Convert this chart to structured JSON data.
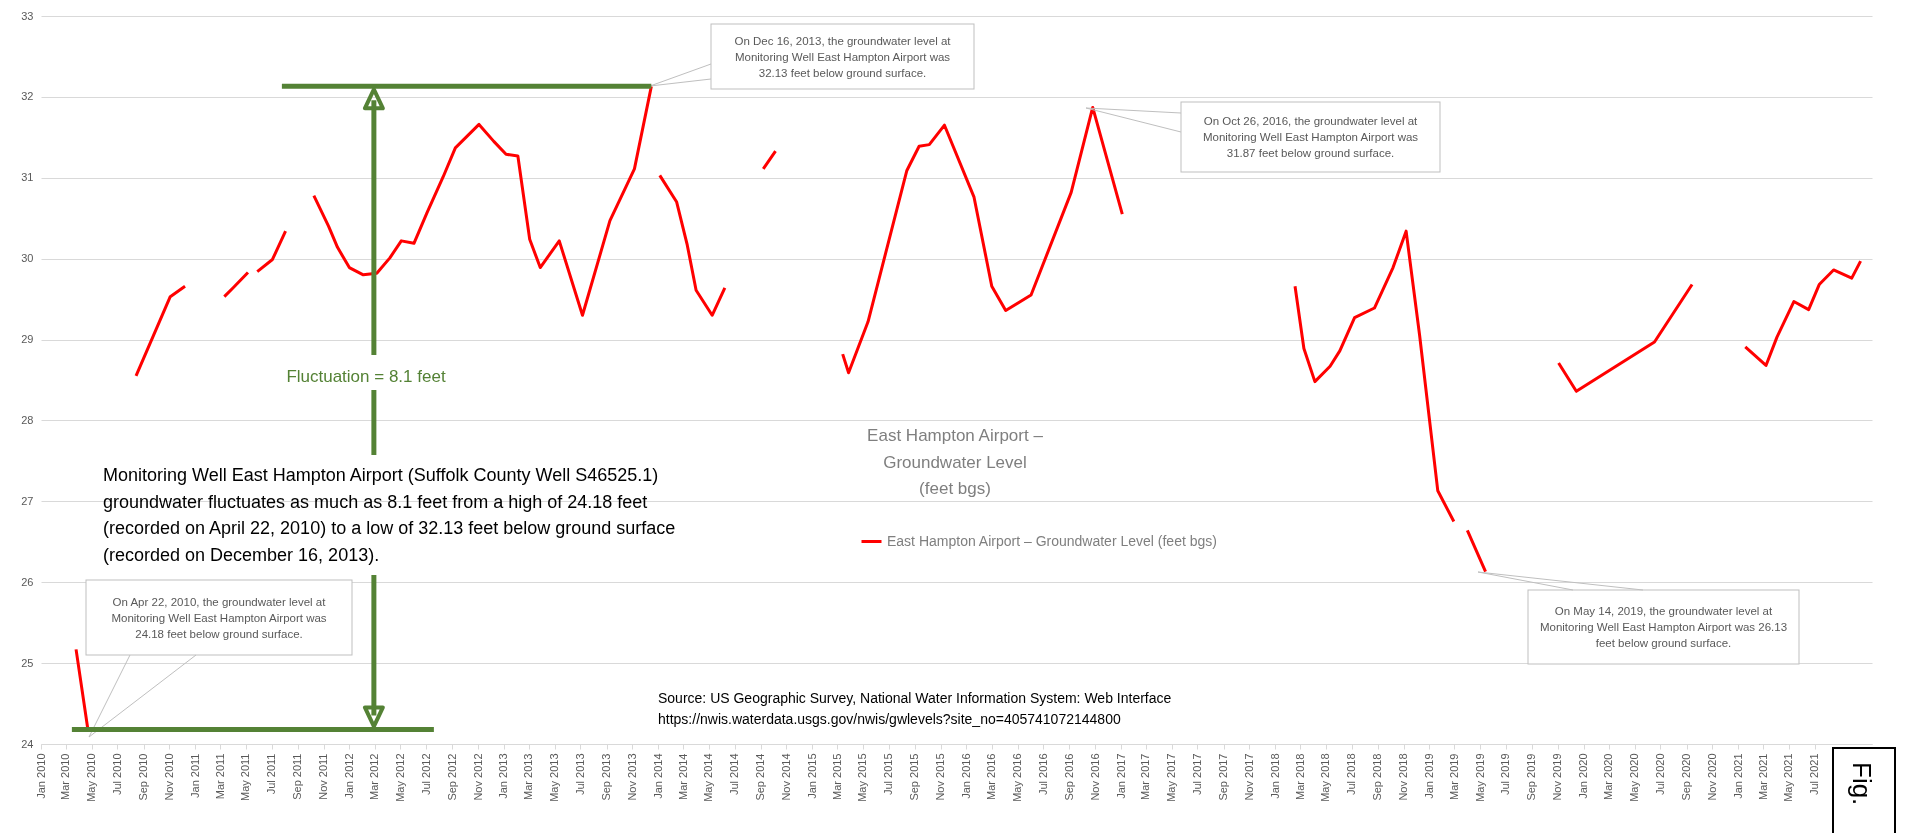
{
  "chart_data": {
    "type": "line",
    "title": "East Hampton Airport – Groundwater Level (feet bgs)",
    "series": [
      {
        "name": "East Hampton Airport – Groundwater Level (feet bgs)",
        "color": "#ff0000",
        "x": [
          "2010-03-25",
          "2010-04-22",
          "2010-06-15",
          "2010-08-14",
          "2010-11-03",
          "2010-12-08",
          "2011-02-01",
          "2011-03-11",
          "2011-04-01",
          "2011-05-06",
          "2011-05-17",
          "2011-05-28",
          "2011-07-03",
          "2011-08-03",
          "2011-09-10",
          "2011-10-09",
          "2011-11-13",
          "2011-12-04",
          "2012-01-01",
          "2012-02-03",
          "2012-03-06",
          "2012-04-06",
          "2012-05-03",
          "2012-06-02",
          "2012-07-03",
          "2012-08-10",
          "2012-09-08",
          "2012-11-03",
          "2012-12-08",
          "2013-01-06",
          "2013-02-03",
          "2013-03-03",
          "2013-03-28",
          "2013-05-12",
          "2013-07-06",
          "2013-09-09",
          "2013-11-06",
          "2013-12-16",
          "2013-12-25",
          "2014-01-05",
          "2014-02-14",
          "2014-03-11",
          "2014-04-01",
          "2014-05-09",
          "2014-06-08",
          "2014-08-01",
          "2014-09-07",
          "2014-10-06",
          "2015-01-01",
          "2015-03-14",
          "2015-03-28",
          "2015-05-13",
          "2015-08-13",
          "2015-09-11",
          "2015-10-05",
          "2015-11-10",
          "2016-01-19",
          "2016-03-01",
          "2016-04-03",
          "2016-06-02",
          "2016-09-05",
          "2016-10-26",
          "2017-01-04",
          "2017-08-01",
          "2018-02-17",
          "2018-03-10",
          "2018-04-05",
          "2018-05-11",
          "2018-06-03",
          "2018-07-08",
          "2018-08-24",
          "2018-10-07",
          "2018-11-07",
          "2018-12-09",
          "2019-01-21",
          "2019-02-28",
          "2019-03-15",
          "2019-04-01",
          "2019-05-14",
          "2019-08-01",
          "2019-11-03",
          "2019-12-15",
          "2020-06-17",
          "2020-09-14",
          "2020-12-01",
          "2021-01-18",
          "2021-03-08",
          "2021-04-03",
          "2021-05-13",
          "2021-06-17",
          "2021-07-12",
          "2021-08-15",
          "2021-09-27",
          "2021-10-18"
        ],
        "values": [
          25.17,
          24.18,
          null,
          28.55,
          29.53,
          29.66,
          null,
          29.53,
          29.64,
          29.83,
          null,
          29.84,
          29.99,
          30.34,
          null,
          30.78,
          30.4,
          30.14,
          29.89,
          29.8,
          29.82,
          30.01,
          30.22,
          30.19,
          30.57,
          31.01,
          31.37,
          31.66,
          31.45,
          31.29,
          31.27,
          30.24,
          29.89,
          30.22,
          29.3,
          30.47,
          31.11,
          32.13,
          null,
          31.03,
          30.7,
          30.17,
          29.61,
          29.3,
          29.64,
          null,
          31.11,
          31.33,
          null,
          28.82,
          28.59,
          29.22,
          31.09,
          31.39,
          31.41,
          31.65,
          30.76,
          29.66,
          29.36,
          29.55,
          30.82,
          31.87,
          30.55,
          null,
          29.66,
          28.89,
          28.48,
          28.67,
          28.86,
          29.27,
          29.39,
          29.89,
          30.34,
          29.05,
          27.13,
          26.75,
          null,
          26.64,
          26.13,
          null,
          28.71,
          28.36,
          28.97,
          29.68,
          null,
          28.91,
          28.68,
          29.03,
          29.47,
          29.37,
          29.68,
          29.86,
          29.76,
          29.97
        ]
      }
    ],
    "xlim": [
      "2010-01-01",
      "2021-11-14"
    ],
    "xticks": [
      {
        "value": "2010-01",
        "label": "Jan 2010"
      },
      {
        "value": "2010-03",
        "label": "Mar 2010"
      },
      {
        "value": "2010-05",
        "label": "May 2010"
      },
      {
        "value": "2010-07",
        "label": "Jul 2010"
      },
      {
        "value": "2010-09",
        "label": "Sep 2010"
      },
      {
        "value": "2010-11",
        "label": "Nov 2010"
      },
      {
        "value": "2011-01",
        "label": "Jan 2011"
      },
      {
        "value": "2011-03",
        "label": "Mar 2011"
      },
      {
        "value": "2011-05",
        "label": "May 2011"
      },
      {
        "value": "2011-07",
        "label": "Jul 2011"
      },
      {
        "value": "2011-09",
        "label": "Sep 2011"
      },
      {
        "value": "2011-11",
        "label": "Nov 2011"
      },
      {
        "value": "2012-01",
        "label": "Jan 2012"
      },
      {
        "value": "2012-03",
        "label": "Mar 2012"
      },
      {
        "value": "2012-05",
        "label": "May 2012"
      },
      {
        "value": "2012-07",
        "label": "Jul 2012"
      },
      {
        "value": "2012-09",
        "label": "Sep 2012"
      },
      {
        "value": "2012-11",
        "label": "Nov 2012"
      },
      {
        "value": "2013-01",
        "label": "Jan 2013"
      },
      {
        "value": "2013-03",
        "label": "Mar 2013"
      },
      {
        "value": "2013-05",
        "label": "May 2013"
      },
      {
        "value": "2013-07",
        "label": "Jul 2013"
      },
      {
        "value": "2013-09",
        "label": "Sep 2013"
      },
      {
        "value": "2013-11",
        "label": "Nov 2013"
      },
      {
        "value": "2014-01",
        "label": "Jan 2014"
      },
      {
        "value": "2014-03",
        "label": "Mar 2014"
      },
      {
        "value": "2014-05",
        "label": "May 2014"
      },
      {
        "value": "2014-07",
        "label": "Jul 2014"
      },
      {
        "value": "2014-09",
        "label": "Sep 2014"
      },
      {
        "value": "2014-11",
        "label": "Nov 2014"
      },
      {
        "value": "2015-01",
        "label": "Jan 2015"
      },
      {
        "value": "2015-03",
        "label": "Mar 2015"
      },
      {
        "value": "2015-05",
        "label": "May 2015"
      },
      {
        "value": "2015-07",
        "label": "Jul 2015"
      },
      {
        "value": "2015-09",
        "label": "Sep 2015"
      },
      {
        "value": "2015-11",
        "label": "Nov 2015"
      },
      {
        "value": "2016-01",
        "label": "Jan 2016"
      },
      {
        "value": "2016-03",
        "label": "Mar 2016"
      },
      {
        "value": "2016-05",
        "label": "May 2016"
      },
      {
        "value": "2016-07",
        "label": "Jul 2016"
      },
      {
        "value": "2016-09",
        "label": "Sep 2016"
      },
      {
        "value": "2016-11",
        "label": "Nov 2016"
      },
      {
        "value": "2017-01",
        "label": "Jan 2017"
      },
      {
        "value": "2017-03",
        "label": "Mar 2017"
      },
      {
        "value": "2017-05",
        "label": "May 2017"
      },
      {
        "value": "2017-07",
        "label": "Jul 2017"
      },
      {
        "value": "2017-09",
        "label": "Sep 2017"
      },
      {
        "value": "2017-11",
        "label": "Nov 2017"
      },
      {
        "value": "2018-01",
        "label": "Jan 2018"
      },
      {
        "value": "2018-03",
        "label": "Mar 2018"
      },
      {
        "value": "2018-05",
        "label": "May 2018"
      },
      {
        "value": "2018-07",
        "label": "Jul 2018"
      },
      {
        "value": "2018-09",
        "label": "Sep 2018"
      },
      {
        "value": "2018-11",
        "label": "Nov 2018"
      },
      {
        "value": "2019-01",
        "label": "Jan 2019"
      },
      {
        "value": "2019-03",
        "label": "Mar 2019"
      },
      {
        "value": "2019-05",
        "label": "May 2019"
      },
      {
        "value": "2019-07",
        "label": "Jul 2019"
      },
      {
        "value": "2019-09",
        "label": "Sep 2019"
      },
      {
        "value": "2019-11",
        "label": "Nov 2019"
      },
      {
        "value": "2020-01",
        "label": "Jan 2020"
      },
      {
        "value": "2020-03",
        "label": "Mar 2020"
      },
      {
        "value": "2020-05",
        "label": "May 2020"
      },
      {
        "value": "2020-07",
        "label": "Jul 2020"
      },
      {
        "value": "2020-09",
        "label": "Sep 2020"
      },
      {
        "value": "2020-11",
        "label": "Nov 2020"
      },
      {
        "value": "2021-01",
        "label": "Jan 2021"
      },
      {
        "value": "2021-03",
        "label": "Mar 2021"
      },
      {
        "value": "2021-05",
        "label": "May 2021"
      },
      {
        "value": "2021-07",
        "label": "Jul 2021"
      }
    ],
    "ylim": [
      24,
      33
    ],
    "yticks": [
      24,
      25,
      26,
      27,
      28,
      29,
      30,
      31,
      32,
      33
    ],
    "grid": "y",
    "legend": "bottom",
    "line_style": "solid",
    "annotations": [
      "On Apr 22, 2010, the groundwater level at Monitoring Well East Hampton Airport was 24.18 feet below ground surface.",
      "On Dec 16, 2013, the groundwater level at Monitoring Well East Hampton Airport was 32.13 feet below ground surface.",
      "On Oct 26, 2016, the groundwater level at Monitoring Well East Hampton Airport was 31.87 feet below ground surface.",
      "On May 14, 2019, the groundwater level at Monitoring Well East Hampton Airport was 26.13 feet below ground surface.",
      "Fluctuation = 8.1 feet",
      "Monitoring Well East Hampton Airport (Suffolk County Well S46525.1) groundwater fluctuates as much as 8.1 feet from a high of 24.18 feet (recorded on April 22, 2010) to a low of 32.13 feet below ground surface (recorded on December 16, 2013).",
      "Source: US Geographic Survey, National Water Information System: Web Interface",
      "https://nwis.waterdata.usgs.gov/nwis/gwlevels?site_no=405741072144800",
      "Fig."
    ]
  }
}
